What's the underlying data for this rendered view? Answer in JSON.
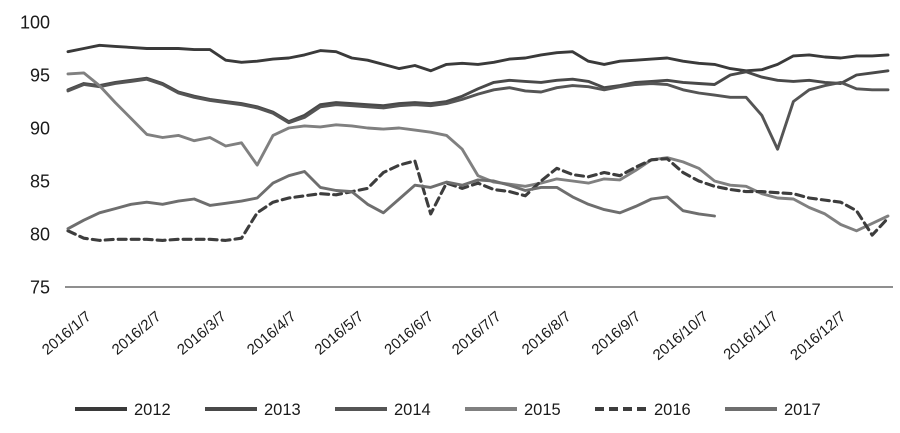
{
  "chart_data": {
    "type": "line",
    "title": "",
    "xlabel": "",
    "ylabel": "",
    "ylim": [
      75,
      100
    ],
    "y_ticks": [
      "100",
      "95",
      "90",
      "85",
      "80",
      "75"
    ],
    "y_tick_values": [
      100,
      95,
      90,
      85,
      80,
      75
    ],
    "grid": false,
    "legend_position": "bottom",
    "axis_line_color": "#8f8f8f",
    "text_color": "#1a1a1a",
    "x_labels": [
      "2016/1/7",
      "2016/2/7",
      "2016/3/7",
      "2016/4/7",
      "2016/5/7",
      "2016/6/7",
      "2016/7/7",
      "2016/8/7",
      "2016/9/7",
      "2016/10/7",
      "2016/11/7",
      "2016/12/7"
    ],
    "x_label_month_day_of_year": [
      7,
      38,
      67,
      98,
      128,
      159,
      189,
      220,
      251,
      281,
      312,
      342
    ],
    "points_per_series": 53,
    "x_unit": "weekly from 2016/1/7",
    "series": [
      {
        "name": "2012",
        "color": "#3a3a3a",
        "style": "solid",
        "values": [
          97.2,
          97.5,
          97.8,
          97.7,
          97.6,
          97.5,
          97.5,
          97.5,
          97.4,
          97.4,
          96.4,
          96.2,
          96.3,
          96.5,
          96.6,
          96.9,
          97.3,
          97.2,
          96.6,
          96.4,
          96.0,
          95.6,
          95.9,
          95.4,
          96.0,
          96.1,
          96.0,
          96.2,
          96.5,
          96.6,
          96.9,
          97.1,
          97.2,
          96.3,
          96.0,
          96.3,
          96.4,
          96.5,
          96.6,
          96.3,
          96.1,
          96.0,
          95.6,
          95.4,
          95.5,
          96.0,
          96.8,
          96.9,
          96.7,
          96.6,
          96.8,
          96.8,
          96.9
        ]
      },
      {
        "name": "2013",
        "color": "#494949",
        "style": "solid",
        "values": [
          93.6,
          94.2,
          94.0,
          94.3,
          94.5,
          94.7,
          94.2,
          93.4,
          93.0,
          92.7,
          92.5,
          92.3,
          92.0,
          91.5,
          90.6,
          91.2,
          92.2,
          92.4,
          92.3,
          92.2,
          92.1,
          92.3,
          92.4,
          92.3,
          92.5,
          93.0,
          93.7,
          94.3,
          94.5,
          94.4,
          94.3,
          94.5,
          94.6,
          94.4,
          93.8,
          94.0,
          94.3,
          94.4,
          94.5,
          94.3,
          94.2,
          94.1,
          95.0,
          95.3,
          94.8,
          94.5,
          94.4,
          94.5,
          94.3,
          94.2,
          95.0,
          95.2,
          95.4
        ]
      },
      {
        "name": "2014",
        "color": "#555555",
        "style": "solid",
        "values": [
          93.5,
          94.1,
          93.9,
          94.2,
          94.4,
          94.6,
          94.1,
          93.3,
          92.9,
          92.6,
          92.4,
          92.2,
          91.9,
          91.4,
          90.5,
          91.0,
          92.0,
          92.2,
          92.1,
          92.0,
          91.9,
          92.1,
          92.2,
          92.1,
          92.3,
          92.7,
          93.2,
          93.6,
          93.8,
          93.5,
          93.4,
          93.8,
          94.0,
          93.9,
          93.6,
          93.9,
          94.1,
          94.2,
          94.1,
          93.6,
          93.3,
          93.1,
          92.9,
          92.9,
          91.2,
          88.0,
          92.5,
          93.6,
          94.0,
          94.3,
          93.7,
          93.6,
          93.6
        ]
      },
      {
        "name": "2015",
        "color": "#808080",
        "style": "solid",
        "values": [
          95.1,
          95.2,
          94.0,
          92.4,
          90.9,
          89.4,
          89.1,
          89.3,
          88.8,
          89.1,
          88.3,
          88.6,
          86.5,
          89.3,
          90.0,
          90.2,
          90.1,
          90.3,
          90.2,
          90.0,
          89.9,
          90.0,
          89.8,
          89.6,
          89.3,
          88.0,
          85.5,
          84.9,
          84.7,
          84.5,
          84.8,
          85.2,
          85.0,
          84.8,
          85.2,
          85.1,
          86.0,
          87.0,
          87.2,
          86.8,
          86.2,
          85.0,
          84.6,
          84.5,
          83.8,
          83.4,
          83.3,
          82.5,
          81.9,
          80.9,
          80.3,
          81.0,
          81.7
        ]
      },
      {
        "name": "2016",
        "color": "#3d3d3d",
        "style": "dashed",
        "values": [
          80.3,
          79.6,
          79.4,
          79.5,
          79.5,
          79.5,
          79.4,
          79.5,
          79.5,
          79.5,
          79.4,
          79.6,
          82.0,
          83.0,
          83.4,
          83.6,
          83.8,
          83.7,
          84.0,
          84.3,
          85.8,
          86.5,
          86.9,
          81.9,
          84.8,
          84.3,
          84.8,
          84.2,
          84.0,
          83.6,
          85.0,
          86.2,
          85.6,
          85.4,
          85.8,
          85.5,
          86.3,
          87.0,
          87.1,
          85.8,
          85.0,
          84.5,
          84.2,
          84.0,
          84.0,
          83.9,
          83.8,
          83.4,
          83.2,
          83.0,
          82.2,
          79.9,
          81.5
        ]
      },
      {
        "name": "2017",
        "color": "#6e6e6e",
        "style": "solid",
        "values": [
          80.5,
          81.3,
          82.0,
          82.4,
          82.8,
          83.0,
          82.8,
          83.1,
          83.3,
          82.7,
          82.9,
          83.1,
          83.4,
          84.8,
          85.5,
          85.9,
          84.4,
          84.1,
          84.0,
          82.8,
          82.0,
          83.3,
          84.6,
          84.4,
          84.9,
          84.6,
          85.1,
          85.0,
          84.6,
          84.1,
          84.4,
          84.4,
          83.5,
          82.8,
          82.3,
          82.0,
          82.6,
          83.3,
          83.5,
          82.2,
          81.9,
          81.7,
          null,
          null,
          null,
          null,
          null,
          null,
          null,
          null,
          null,
          null,
          null
        ]
      }
    ],
    "legend": [
      "2012",
      "2013",
      "2014",
      "2015",
      "2016",
      "2017"
    ]
  }
}
